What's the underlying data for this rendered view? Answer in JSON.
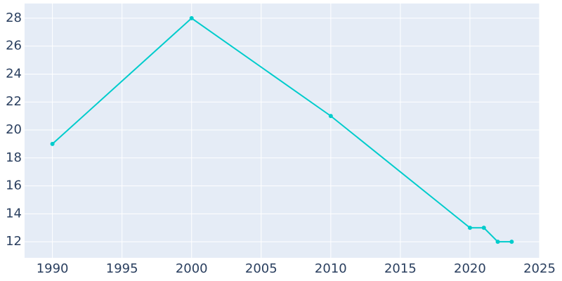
{
  "chart_data": {
    "type": "line",
    "x": [
      1990,
      2000,
      2010,
      2020,
      2021,
      2022,
      2023
    ],
    "series": [
      {
        "color": "#00cccc",
        "values": [
          19,
          28,
          21,
          13,
          13,
          12,
          12
        ]
      }
    ],
    "xlim": [
      1988,
      2025
    ],
    "xticks": [
      1990,
      1995,
      2000,
      2005,
      2010,
      2015,
      2020,
      2025
    ],
    "ylim": [
      10.85,
      29.05
    ],
    "yticks": [
      12,
      14,
      16,
      18,
      20,
      22,
      24,
      26,
      28
    ],
    "grid": true
  }
}
